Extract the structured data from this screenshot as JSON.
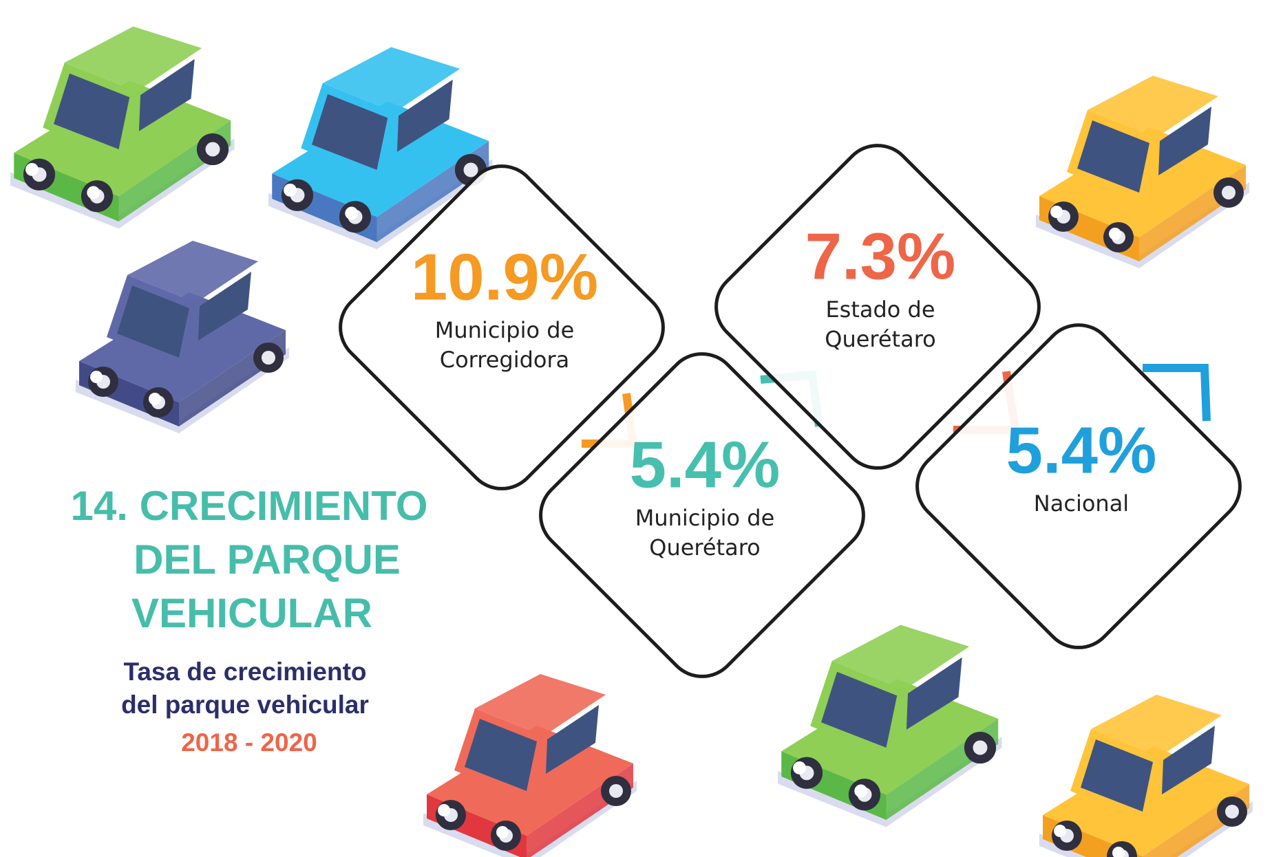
{
  "title": [
    "14. CRECIMIENTO",
    "DEL PARQUE",
    "VEHICULAR"
  ],
  "subtitle": [
    "Tasa de crecimiento",
    "del parque vehicular"
  ],
  "period": "2018 - 2020",
  "stats": [
    {
      "value": "10.9%",
      "label": [
        "Municipio de",
        "Corregidora"
      ],
      "color": "#f59a23"
    },
    {
      "value": "5.4%",
      "label": [
        "Municipio de",
        "Querétaro"
      ],
      "color": "#46bfae"
    },
    {
      "value": "7.3%",
      "label": [
        "Estado de",
        "Querétaro"
      ],
      "color": "#ee6548"
    },
    {
      "value": "5.4%",
      "label": [
        "Nacional"
      ],
      "color": "#1fa0dc"
    }
  ]
}
